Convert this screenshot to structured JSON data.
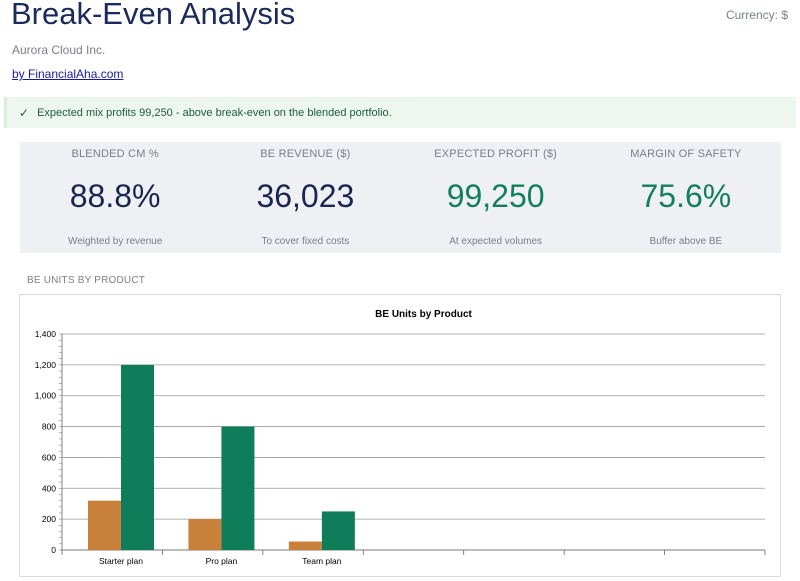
{
  "header": {
    "title": "Break-Even Analysis",
    "currency": "Currency: $",
    "company": "Aurora Cloud Inc.",
    "byline": "by FinancialAha.com"
  },
  "banner": {
    "icon": "check-icon",
    "text": "Expected mix profits 99,250 - above break-even on the blended portfolio."
  },
  "kpis": [
    {
      "label": "BLENDED CM %",
      "value": "88.8%",
      "sub": "Weighted by revenue"
    },
    {
      "label": "BE REVENUE ($)",
      "value": "36,023",
      "sub": "To cover fixed costs"
    },
    {
      "label": "EXPECTED PROFIT ($)",
      "value": "99,250",
      "sub": "At expected volumes"
    },
    {
      "label": "MARGIN OF SAFETY",
      "value": "75.6%",
      "sub": "Buffer above BE"
    }
  ],
  "colors": {
    "navy": "#1b2550",
    "green": "#13805a",
    "orange": "#c8803a",
    "bar_green": "#0f7d5a"
  },
  "section": {
    "label": "BE UNITS BY PRODUCT"
  },
  "chart_data": {
    "type": "bar",
    "title": "BE Units by Product",
    "categories": [
      "Starter plan",
      "Pro plan",
      "Team plan",
      "",
      "",
      "",
      ""
    ],
    "series": [
      {
        "values": [
          320,
          200,
          55,
          0,
          0,
          0,
          0
        ],
        "color": "#c8803a"
      },
      {
        "values": [
          1200,
          800,
          250,
          0,
          0,
          0,
          0
        ],
        "color": "#0f7d5a"
      }
    ],
    "ylim": [
      0,
      1400
    ],
    "yticks": [
      "0",
      "200",
      "400",
      "600",
      "800",
      "1,000",
      "1,200",
      "1,400"
    ],
    "grid": true,
    "legend": "none"
  }
}
